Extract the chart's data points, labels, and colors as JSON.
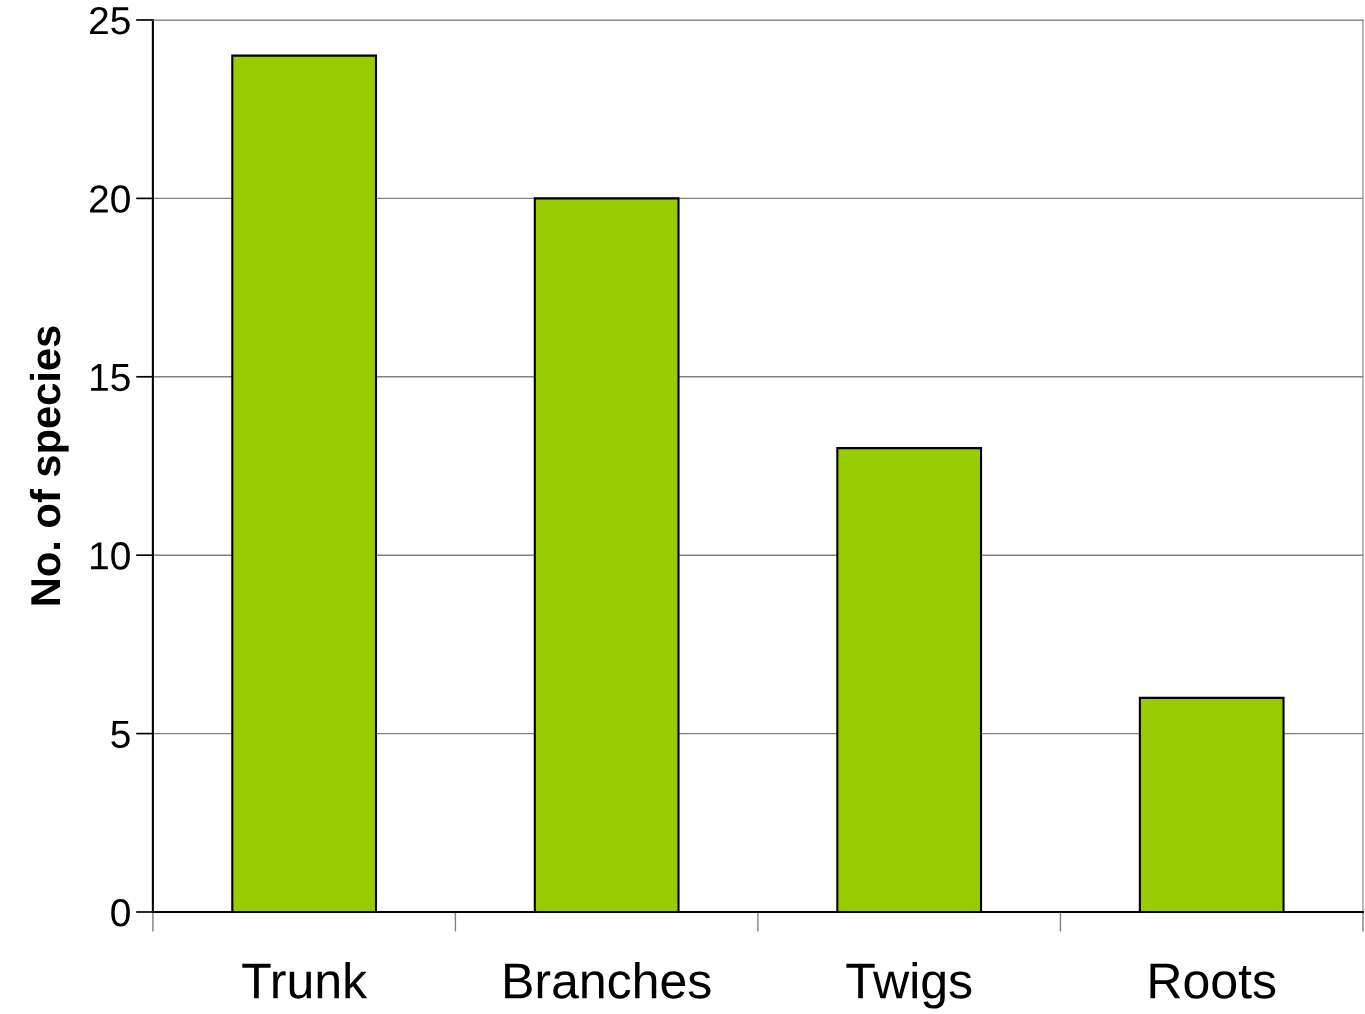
{
  "chart_data": {
    "type": "bar",
    "ylabel": "No. of species",
    "categories": [
      "Trunk",
      "Branches",
      "Twigs",
      "Roots"
    ],
    "values": [
      24,
      20,
      13,
      6
    ],
    "color": "#99cc00",
    "ylim": [
      0,
      25
    ],
    "yticks": [
      0,
      5,
      10,
      15,
      20,
      25
    ],
    "grid": "y",
    "legend": false
  }
}
